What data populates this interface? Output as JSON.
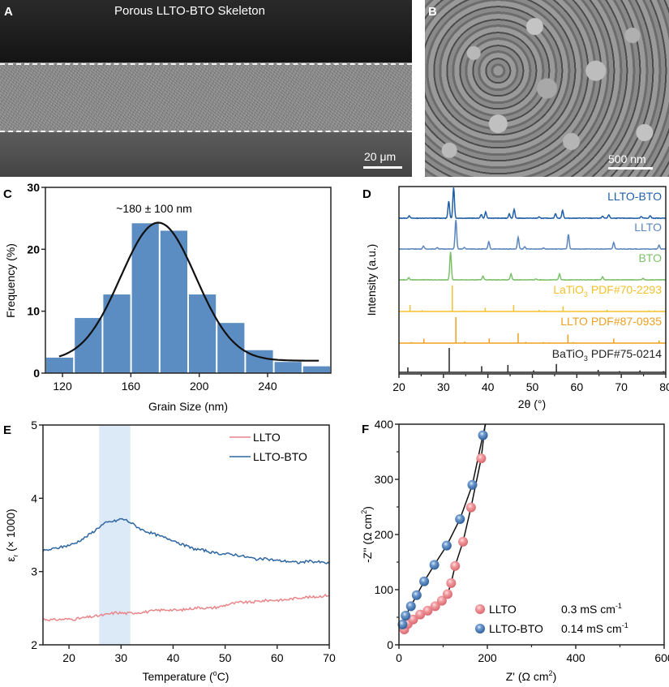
{
  "figure": {
    "panel_a": {
      "letter": "A",
      "title": "Porous LLTO-BTO Skeleton",
      "scale_bar": "20 μm"
    },
    "panel_b": {
      "letter": "B",
      "scale_bar": "500 nm"
    },
    "panel_c": {
      "letter": "C"
    },
    "panel_d": {
      "letter": "D"
    },
    "panel_e": {
      "letter": "E"
    },
    "panel_f": {
      "letter": "F"
    }
  },
  "colors": {
    "hist_bar": "#5b8cc2",
    "llto_bto": "#1f5fa8",
    "llto": "#5b86bd",
    "bto": "#7cc069",
    "latio3": "#f3c22a",
    "llto_pdf": "#eea020",
    "batio3": "#222222",
    "e_llto": "#e8868a",
    "e_llto_bto": "#2e66a2",
    "shade": "#dceaf7",
    "f_llto": "#ef8f95",
    "f_llto_bto": "#5a88c0"
  },
  "chart_data": [
    {
      "id": "C",
      "type": "bar",
      "title": "",
      "annotation": "~180 ± 100 nm",
      "xlabel": "Grain Size (nm)",
      "ylabel": "Frequency (%)",
      "xlim": [
        110,
        277
      ],
      "ylim": [
        0,
        30
      ],
      "xticks": [
        "120",
        "160",
        "200",
        "240"
      ],
      "xtick_values": [
        120,
        160,
        200,
        240
      ],
      "yticks": [
        "0",
        "10",
        "20",
        "30"
      ],
      "ytick_values": [
        0,
        10,
        20,
        30
      ],
      "bin_edges": [
        110,
        126.7,
        143.4,
        160.1,
        176.8,
        193.5,
        210.2,
        226.9,
        243.6,
        260.3,
        277
      ],
      "values": [
        2.5,
        8.9,
        12.7,
        24.2,
        23.0,
        12.7,
        8.1,
        3.7,
        1.8,
        1.1
      ],
      "fit": {
        "type": "gaussian",
        "center": 176,
        "sigma": 22,
        "amplitude": 22.3,
        "offset": 2.0,
        "x_range": [
          118,
          270
        ]
      }
    },
    {
      "id": "D",
      "type": "line",
      "xlabel": "2θ (°)",
      "ylabel": "Intensity (a.u.)",
      "xlim": [
        20,
        80
      ],
      "xticks": [
        "20",
        "30",
        "40",
        "50",
        "60",
        "70",
        "80"
      ],
      "xtick_values": [
        20,
        30,
        40,
        50,
        60,
        70,
        80
      ],
      "series": [
        {
          "name": "LLTO-BTO",
          "label": "LLTO-BTO",
          "style": "pattern",
          "color_key": "llto_bto",
          "peaks": [
            [
              22.3,
              0.08
            ],
            [
              31.2,
              0.55
            ],
            [
              32.3,
              1.0
            ],
            [
              38.5,
              0.12
            ],
            [
              39.5,
              0.2
            ],
            [
              44.8,
              0.14
            ],
            [
              45.9,
              0.28
            ],
            [
              51.5,
              0.04
            ],
            [
              55.2,
              0.15
            ],
            [
              56.8,
              0.25
            ],
            [
              65.8,
              0.06
            ],
            [
              67.2,
              0.11
            ],
            [
              74.5,
              0.05
            ],
            [
              76.5,
              0.08
            ]
          ]
        },
        {
          "name": "LLTO",
          "label": "LLTO",
          "style": "pattern",
          "color_key": "llto",
          "peaks": [
            [
              25.5,
              0.1
            ],
            [
              28.6,
              0.05
            ],
            [
              32.8,
              1.0
            ],
            [
              34.7,
              0.05
            ],
            [
              40.2,
              0.25
            ],
            [
              46.8,
              0.4
            ],
            [
              48.3,
              0.08
            ],
            [
              52.5,
              0.04
            ],
            [
              58.1,
              0.5
            ],
            [
              68.3,
              0.22
            ],
            [
              78.5,
              0.13
            ]
          ]
        },
        {
          "name": "BTO",
          "label": "BTO",
          "style": "pattern",
          "color_key": "bto",
          "peaks": [
            [
              22.2,
              0.07
            ],
            [
              31.6,
              0.95
            ],
            [
              38.9,
              0.13
            ],
            [
              45.2,
              0.2
            ],
            [
              50.8,
              0.03
            ],
            [
              56.1,
              0.2
            ],
            [
              65.8,
              0.1
            ],
            [
              74.9,
              0.05
            ]
          ]
        },
        {
          "name": "LaTiO3 PDF#70-2293",
          "label_main": "LaTiO",
          "label_sub": "3",
          "label_rest": " PDF#70-2293",
          "style": "sticks",
          "color_key": "latio3",
          "peaks": [
            [
              22.5,
              0.25
            ],
            [
              25.2,
              0.05
            ],
            [
              32.0,
              1.0
            ],
            [
              34.5,
              0.03
            ],
            [
              39.4,
              0.14
            ],
            [
              45.8,
              0.25
            ],
            [
              51.5,
              0.06
            ],
            [
              52.8,
              0.04
            ],
            [
              56.9,
              0.2
            ],
            [
              66.8,
              0.07
            ],
            [
              76.2,
              0.05
            ],
            [
              77.5,
              0.04
            ]
          ]
        },
        {
          "name": "LLTO PDF#87-0935",
          "label": "LLTO PDF#87-0935",
          "style": "sticks",
          "color_key": "llto_pdf",
          "peaks": [
            [
              22.8,
              0.04
            ],
            [
              25.6,
              0.17
            ],
            [
              32.8,
              1.0
            ],
            [
              34.8,
              0.06
            ],
            [
              40.3,
              0.18
            ],
            [
              46.8,
              0.38
            ],
            [
              48.5,
              0.05
            ],
            [
              52.5,
              0.04
            ],
            [
              53.8,
              0.03
            ],
            [
              58.0,
              0.33
            ],
            [
              59.2,
              0.04
            ],
            [
              68.3,
              0.18
            ],
            [
              78.5,
              0.1
            ]
          ]
        },
        {
          "name": "BaTiO3 PDF#75-0214",
          "label_main": "BaTiO",
          "label_sub": "3",
          "label_rest": " PDF#75-0214",
          "style": "sticks",
          "color_key": "batio3",
          "peaks": [
            [
              22.0,
              0.2
            ],
            [
              31.3,
              1.0
            ],
            [
              38.6,
              0.25
            ],
            [
              44.5,
              0.3
            ],
            [
              50.3,
              0.08
            ],
            [
              55.4,
              0.34
            ],
            [
              64.8,
              0.1
            ],
            [
              69.6,
              0.05
            ],
            [
              74.2,
              0.08
            ],
            [
              79.5,
              0.05
            ]
          ]
        }
      ]
    },
    {
      "id": "E",
      "type": "line",
      "xlabel": "Temperature (°C)",
      "xlabel_main": "Temperature (",
      "xlabel_sup": "o",
      "xlabel_rest": "C)",
      "ylabel_main": "ε",
      "ylabel_sub": "r",
      "ylabel_rest": " (× 1000)",
      "xlim": [
        15,
        70
      ],
      "ylim": [
        2,
        5
      ],
      "xticks": [
        "20",
        "30",
        "40",
        "50",
        "60",
        "70"
      ],
      "xtick_values": [
        20,
        30,
        40,
        50,
        60,
        70
      ],
      "yticks": [
        "2",
        "3",
        "4",
        "5"
      ],
      "ytick_values": [
        2,
        3,
        4,
        5
      ],
      "shaded_region": [
        25.8,
        31.8
      ],
      "legend": {
        "placement": "top-right"
      },
      "series": [
        {
          "name": "LLTO",
          "color_key": "e_llto",
          "x": [
            15,
            17,
            19,
            21,
            23,
            25,
            27,
            29,
            31,
            33,
            35,
            37,
            39,
            41,
            43,
            45,
            47,
            49,
            51,
            53,
            55,
            57,
            59,
            61,
            63,
            65,
            67,
            69,
            70
          ],
          "y": [
            2.35,
            2.34,
            2.35,
            2.35,
            2.37,
            2.39,
            2.41,
            2.44,
            2.43,
            2.44,
            2.45,
            2.47,
            2.48,
            2.47,
            2.49,
            2.51,
            2.5,
            2.52,
            2.56,
            2.58,
            2.58,
            2.6,
            2.61,
            2.61,
            2.63,
            2.65,
            2.65,
            2.67,
            2.68
          ]
        },
        {
          "name": "LLTO-BTO",
          "color_key": "e_llto_bto",
          "x": [
            15,
            17,
            19,
            21,
            23,
            25,
            26,
            27,
            28,
            29,
            30,
            31,
            32,
            34,
            36,
            38,
            40,
            42,
            44,
            46,
            48,
            50,
            52,
            54,
            56,
            58,
            60,
            62,
            64,
            66,
            68,
            70
          ],
          "y": [
            3.28,
            3.31,
            3.34,
            3.38,
            3.46,
            3.56,
            3.62,
            3.66,
            3.68,
            3.69,
            3.72,
            3.7,
            3.66,
            3.57,
            3.52,
            3.47,
            3.43,
            3.36,
            3.31,
            3.29,
            3.25,
            3.24,
            3.23,
            3.2,
            3.17,
            3.17,
            3.15,
            3.14,
            3.12,
            3.14,
            3.13,
            3.11
          ]
        }
      ]
    },
    {
      "id": "F",
      "type": "scatter",
      "xlabel_main": "Z' (Ω cm",
      "xlabel_sup": "2",
      "xlabel_rest": ")",
      "ylabel_main": "-Z'' (Ω cm",
      "ylabel_sup": "2",
      "ylabel_rest": ")",
      "xlim": [
        0,
        600
      ],
      "ylim": [
        0,
        400
      ],
      "xticks": [
        "0",
        "200",
        "400",
        "600"
      ],
      "xtick_values": [
        0,
        200,
        400,
        600
      ],
      "yticks": [
        "0",
        "100",
        "200",
        "300",
        "400"
      ],
      "ytick_values": [
        0,
        100,
        200,
        300,
        400
      ],
      "legend": {
        "placement": "bottom-center"
      },
      "series": [
        {
          "name": "LLTO",
          "conductivity": "0.3 mS cm",
          "conductivity_sup": "-1",
          "color_key": "f_llto",
          "x": [
            12,
            20,
            32,
            48,
            65,
            82,
            97,
            110,
            118,
            127,
            145,
            163,
            186
          ],
          "y": [
            28,
            38,
            46,
            55,
            62,
            70,
            80,
            92,
            112,
            143,
            187,
            249,
            338
          ],
          "fit_extend": [
            [
              186,
              338
            ],
            [
              195,
              400
            ]
          ]
        },
        {
          "name": "LLTO-BTO",
          "conductivity": "0.14 mS cm",
          "conductivity_sup": "-1",
          "color_key": "f_llto_bto",
          "x": [
            8,
            15,
            27,
            40,
            57,
            80,
            108,
            138,
            166,
            190
          ],
          "y": [
            37,
            53,
            70,
            90,
            115,
            145,
            180,
            228,
            290,
            380
          ],
          "fit_extend": [
            [
              190,
              380
            ],
            [
              196,
              400
            ]
          ]
        }
      ]
    }
  ]
}
